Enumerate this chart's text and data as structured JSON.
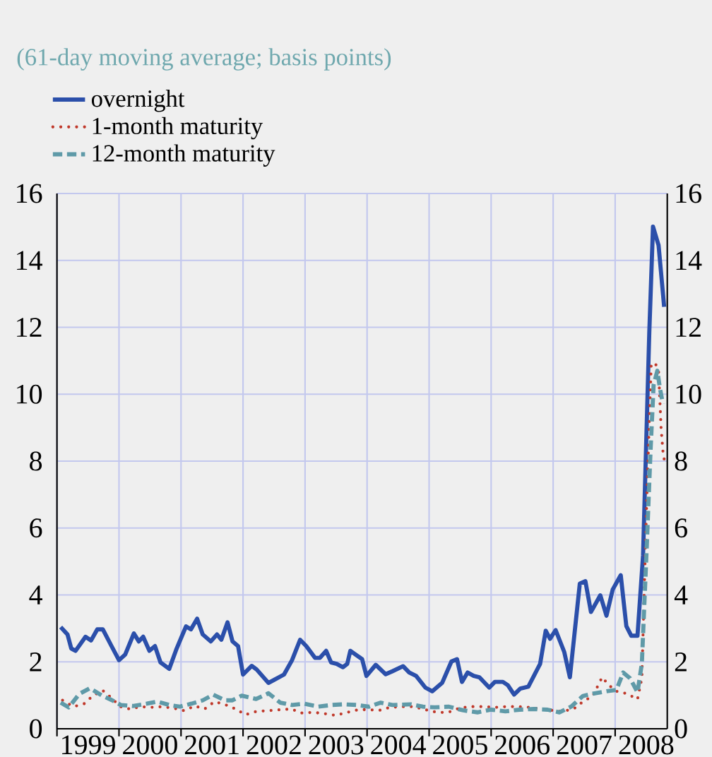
{
  "chart_data": {
    "type": "line",
    "title": "(61-day moving average; basis points)",
    "xlim": [
      1999,
      2008.84
    ],
    "ylim": [
      0,
      16
    ],
    "y2lim": [
      0,
      16
    ],
    "xticks": [
      {
        "value": 1999,
        "label": null
      },
      {
        "value": 1999.5,
        "label": "1999"
      },
      {
        "value": 2000,
        "label": null
      },
      {
        "value": 2000.5,
        "label": "2000"
      },
      {
        "value": 2001,
        "label": null
      },
      {
        "value": 2001.5,
        "label": "2001"
      },
      {
        "value": 2002,
        "label": null
      },
      {
        "value": 2002.5,
        "label": "2002"
      },
      {
        "value": 2003,
        "label": null
      },
      {
        "value": 2003.5,
        "label": "2003"
      },
      {
        "value": 2004,
        "label": null
      },
      {
        "value": 2004.5,
        "label": "2004"
      },
      {
        "value": 2005,
        "label": null
      },
      {
        "value": 2005.5,
        "label": "2005"
      },
      {
        "value": 2006,
        "label": null
      },
      {
        "value": 2006.5,
        "label": "2006"
      },
      {
        "value": 2007,
        "label": null
      },
      {
        "value": 2007.5,
        "label": "2007"
      },
      {
        "value": 2008,
        "label": null
      },
      {
        "value": 2008.5,
        "label": "2008"
      }
    ],
    "yticks": [
      0,
      2,
      4,
      6,
      8,
      10,
      12,
      14,
      16
    ],
    "y2ticks": [
      0,
      2,
      4,
      6,
      8,
      10,
      12,
      14,
      16
    ],
    "grid": true,
    "legend": "top left",
    "marker": "none",
    "series": [
      {
        "name": "overnight",
        "color": "#2b4faa",
        "line_style": "solid",
        "x": [
          1999.06,
          1999.17,
          1999.23,
          1999.3,
          1999.46,
          1999.55,
          1999.65,
          1999.74,
          1999.88,
          2000.0,
          2000.1,
          2000.24,
          2000.32,
          2000.39,
          2000.49,
          2000.58,
          2000.67,
          2000.81,
          2000.93,
          2001.08,
          2001.16,
          2001.26,
          2001.35,
          2001.48,
          2001.58,
          2001.65,
          2001.75,
          2001.83,
          2001.92,
          2002.0,
          2002.14,
          2002.22,
          2002.41,
          2002.52,
          2002.66,
          2002.79,
          2002.92,
          2003.02,
          2003.16,
          2003.24,
          2003.34,
          2003.42,
          2003.51,
          2003.61,
          2003.68,
          2003.73,
          2003.92,
          2003.99,
          2004.14,
          2004.3,
          2004.41,
          2004.58,
          2004.68,
          2004.79,
          2004.94,
          2005.05,
          2005.21,
          2005.36,
          2005.45,
          2005.53,
          2005.62,
          2005.72,
          2005.81,
          2005.97,
          2006.06,
          2006.19,
          2006.27,
          2006.37,
          2006.47,
          2006.6,
          2006.79,
          2006.88,
          2006.95,
          2007.04,
          2007.18,
          2007.27,
          2007.43,
          2007.52,
          2007.61,
          2007.76,
          2007.86,
          2007.96,
          2008.09,
          2008.18,
          2008.26,
          2008.36,
          2008.45,
          2008.55,
          2008.61,
          2008.7,
          2008.79
        ],
        "values": [
          3.04,
          2.82,
          2.4,
          2.33,
          2.75,
          2.64,
          2.97,
          2.97,
          2.47,
          2.05,
          2.22,
          2.85,
          2.61,
          2.75,
          2.33,
          2.47,
          1.98,
          1.79,
          2.4,
          3.06,
          2.97,
          3.29,
          2.82,
          2.61,
          2.82,
          2.66,
          3.18,
          2.61,
          2.47,
          1.62,
          1.88,
          1.77,
          1.37,
          1.48,
          1.62,
          2.05,
          2.66,
          2.47,
          2.12,
          2.12,
          2.33,
          1.98,
          1.94,
          1.84,
          1.94,
          2.33,
          2.08,
          1.58,
          1.91,
          1.63,
          1.72,
          1.87,
          1.68,
          1.58,
          1.23,
          1.12,
          1.37,
          2.01,
          2.08,
          1.4,
          1.68,
          1.58,
          1.54,
          1.23,
          1.4,
          1.4,
          1.3,
          1.02,
          1.2,
          1.26,
          1.94,
          2.93,
          2.69,
          2.95,
          2.29,
          1.54,
          4.34,
          4.41,
          3.49,
          3.99,
          3.38,
          4.16,
          4.59,
          3.07,
          2.78,
          2.78,
          5.19,
          11.83,
          15.01,
          14.45,
          12.61
        ]
      },
      {
        "name": "1-month maturity",
        "color": "#c0392b",
        "line_style": "dotted",
        "x": [
          1999.09,
          1999.27,
          1999.44,
          1999.58,
          1999.74,
          1999.88,
          2000.02,
          2000.17,
          2000.36,
          2000.51,
          2000.7,
          2000.89,
          2001.05,
          2001.22,
          2001.38,
          2001.54,
          2001.7,
          2001.88,
          2002.04,
          2002.22,
          2002.41,
          2002.6,
          2002.78,
          2002.94,
          2003.13,
          2003.32,
          2003.49,
          2003.68,
          2003.86,
          2004.02,
          2004.2,
          2004.37,
          2004.56,
          2004.75,
          2004.94,
          2005.13,
          2005.31,
          2005.49,
          2005.68,
          2005.87,
          2006.06,
          2006.23,
          2006.42,
          2006.61,
          2006.8,
          2006.98,
          2007.14,
          2007.33,
          2007.48,
          2007.64,
          2007.79,
          2007.9,
          2008.02,
          2008.19,
          2008.36,
          2008.43,
          2008.51,
          2008.58,
          2008.64,
          2008.7,
          2008.74,
          2008.77,
          2008.8
        ],
        "values": [
          0.85,
          0.66,
          0.75,
          0.99,
          1.14,
          0.92,
          0.66,
          0.59,
          0.66,
          0.64,
          0.66,
          0.61,
          0.54,
          0.68,
          0.59,
          0.81,
          0.73,
          0.59,
          0.42,
          0.52,
          0.54,
          0.57,
          0.59,
          0.47,
          0.49,
          0.45,
          0.4,
          0.49,
          0.57,
          0.57,
          0.55,
          0.64,
          0.66,
          0.66,
          0.57,
          0.49,
          0.49,
          0.62,
          0.66,
          0.66,
          0.64,
          0.66,
          0.66,
          0.64,
          0.59,
          0.55,
          0.52,
          0.59,
          0.81,
          0.98,
          1.54,
          1.3,
          1.12,
          1.05,
          0.88,
          1.51,
          6.88,
          10.84,
          10.95,
          10.7,
          9.0,
          8.3,
          7.94
        ]
      },
      {
        "name": "12-month maturity",
        "color": "#5f9aa8",
        "line_style": "dashed",
        "x": [
          1999.06,
          1999.19,
          1999.36,
          1999.53,
          1999.72,
          1999.88,
          2000.03,
          2000.22,
          2000.45,
          2000.62,
          2000.81,
          2000.98,
          2001.17,
          2001.35,
          2001.52,
          2001.71,
          2001.83,
          2001.98,
          2002.21,
          2002.41,
          2002.6,
          2002.79,
          2002.98,
          2003.21,
          2003.43,
          2003.62,
          2003.84,
          2004.03,
          2004.22,
          2004.41,
          2004.71,
          2004.9,
          2005.09,
          2005.32,
          2005.55,
          2005.78,
          2006.0,
          2006.23,
          2006.46,
          2006.69,
          2006.91,
          2007.1,
          2007.29,
          2007.48,
          2007.67,
          2007.86,
          2008.02,
          2008.13,
          2008.24,
          2008.36,
          2008.43,
          2008.51,
          2008.57,
          2008.62,
          2008.68,
          2008.72,
          2008.77
        ],
        "values": [
          0.78,
          0.64,
          1.04,
          1.21,
          1.0,
          0.86,
          0.71,
          0.68,
          0.75,
          0.81,
          0.71,
          0.66,
          0.75,
          0.85,
          1.02,
          0.85,
          0.85,
          0.99,
          0.89,
          1.06,
          0.78,
          0.71,
          0.75,
          0.66,
          0.71,
          0.73,
          0.71,
          0.66,
          0.78,
          0.71,
          0.73,
          0.66,
          0.64,
          0.66,
          0.55,
          0.49,
          0.57,
          0.52,
          0.57,
          0.59,
          0.57,
          0.49,
          0.66,
          0.98,
          1.06,
          1.12,
          1.16,
          1.68,
          1.51,
          1.09,
          1.94,
          5.47,
          8.3,
          10.28,
          10.7,
          10.2,
          9.71
        ]
      }
    ]
  }
}
